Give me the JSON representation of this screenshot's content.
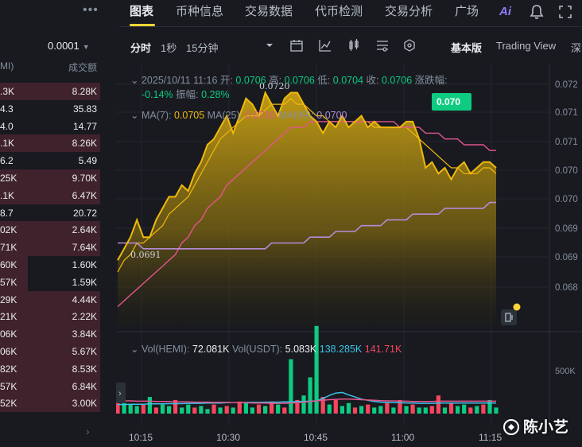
{
  "orderbook": {
    "menu_icon": "more-dots-icon",
    "precision": "0.0001",
    "header_left": "MI)",
    "header_right": "成交额",
    "rows": [
      {
        "qty": ".3K",
        "amount": "8.28K",
        "bar": 1.0
      },
      {
        "qty": "4.3",
        "amount": "35.83",
        "bar": 0.0
      },
      {
        "qty": "4.0",
        "amount": "14.77",
        "bar": 0.0
      },
      {
        "qty": ".1K",
        "amount": "8.26K",
        "bar": 1.0
      },
      {
        "qty": "6.2",
        "amount": "5.49",
        "bar": 0.0
      },
      {
        "qty": "25K",
        "amount": "9.70K",
        "bar": 1.0
      },
      {
        "qty": ".1K",
        "amount": "6.47K",
        "bar": 1.0
      },
      {
        "qty": "8.7",
        "amount": "20.72",
        "bar": 0.0
      },
      {
        "qty": "02K",
        "amount": "2.64K",
        "bar": 1.0
      },
      {
        "qty": "71K",
        "amount": "7.64K",
        "bar": 1.0
      },
      {
        "qty": "60K",
        "amount": "1.60K",
        "bar": 0.28
      },
      {
        "qty": "57K",
        "amount": "1.59K",
        "bar": 0.28
      },
      {
        "qty": "29K",
        "amount": "4.44K",
        "bar": 1.0
      },
      {
        "qty": "21K",
        "amount": "2.22K",
        "bar": 1.0
      },
      {
        "qty": "06K",
        "amount": "3.84K",
        "bar": 1.0
      },
      {
        "qty": "06K",
        "amount": "5.67K",
        "bar": 1.0
      },
      {
        "qty": "82K",
        "amount": "8.53K",
        "bar": 1.0
      },
      {
        "qty": "57K",
        "amount": "6.84K",
        "bar": 1.0
      },
      {
        "qty": "52K",
        "amount": "3.00K",
        "bar": 1.0
      }
    ],
    "more_icon": "chevron-right-icon"
  },
  "tabs": [
    {
      "label": "图表",
      "active": true
    },
    {
      "label": "币种信息",
      "active": false
    },
    {
      "label": "交易数据",
      "active": false
    },
    {
      "label": "代币检测",
      "active": false
    },
    {
      "label": "交易分析",
      "active": false
    },
    {
      "label": "广场",
      "active": false
    }
  ],
  "header_icons": [
    "ai-icon",
    "bell-icon",
    "expand-icon"
  ],
  "header_ai_label": "Ai",
  "toolbar": {
    "intervals": [
      {
        "label": "分时",
        "active": true
      },
      {
        "label": "1秒",
        "active": false
      },
      {
        "label": "15分钟",
        "active": false
      }
    ],
    "icons": [
      "dropdown-caret-icon",
      "calendar-icon",
      "indicator-icon",
      "candlestick-icon",
      "settings-sliders-icon",
      "hexagon-settings-icon"
    ],
    "views": [
      {
        "label": "基本版",
        "active": true
      },
      {
        "label": "Trading View",
        "active": false
      },
      {
        "label": "深",
        "active": false
      }
    ]
  },
  "ohlc": {
    "datetime": "2025/10/11 11:16",
    "open_label": "开:",
    "open": "0.0706",
    "high_label": "高:",
    "high": "0.0706",
    "low_label": "低:",
    "low": "0.0704",
    "close_label": "收:",
    "close": "0.0706",
    "change_label": "涨跌幅:",
    "change": "-0.14%",
    "amplitude_label": "振幅:",
    "amplitude": "0.28%"
  },
  "ma": {
    "ma7_label": "MA(7):",
    "ma7": "0.0705",
    "ma25_label": "MA(25):",
    "ma25": "0.0710",
    "ma99_label": "MA(99):",
    "ma99": "0.0700"
  },
  "vol": {
    "vol_hemi_label": "Vol(HEMI):",
    "vol_hemi": "72.081K",
    "vol_usdt_label": "Vol(USDT):",
    "vol_usdt": "5.083K",
    "ma_a": "138.285K",
    "ma_b": "141.71K"
  },
  "price_tag": "0.070",
  "high_marker": "0.0720",
  "low_marker": "0.0691",
  "colors": {
    "up": "#0ecb81",
    "down": "#f6465d",
    "accent": "#fcd535",
    "price_line": "#f0b90b",
    "ma7": "#f0b90b",
    "ma25": "#e2558e",
    "ma99": "#b48bd8",
    "vol_ma": "#3cc2e6"
  },
  "chart_data": {
    "type": "area",
    "price_axis_ticks": [
      "0.072",
      "0.071",
      "0.071",
      "0.070",
      "0.070",
      "0.069",
      "0.069",
      "0.068"
    ],
    "volume_axis_ticks": [
      "500K"
    ],
    "time_ticks": [
      "10:15",
      "10:30",
      "10:45",
      "11:00",
      "11:15"
    ],
    "price": [
      0.0691,
      0.0693,
      0.0695,
      0.0698,
      0.0695,
      0.0695,
      0.0698,
      0.07,
      0.0702,
      0.0702,
      0.0704,
      0.0703,
      0.0706,
      0.0708,
      0.0711,
      0.0712,
      0.0714,
      0.0716,
      0.0713,
      0.0716,
      0.0719,
      0.0718,
      0.0716,
      0.072,
      0.0718,
      0.0716,
      0.0719,
      0.072,
      0.072,
      0.0718,
      0.0716,
      0.0715,
      0.0713,
      0.0715,
      0.0714,
      0.0716,
      0.0714,
      0.0715,
      0.0716,
      0.0714,
      0.0715,
      0.0714,
      0.0714,
      0.0714,
      0.0714,
      0.0715,
      0.0715,
      0.0712,
      0.0707,
      0.0708,
      0.0706,
      0.0707,
      0.0705,
      0.0707,
      0.0708,
      0.0706,
      0.0707,
      0.0708,
      0.0708,
      0.0707
    ],
    "ma7": [
      0.0689,
      0.0691,
      0.0692,
      0.0694,
      0.0694,
      0.0695,
      0.0696,
      0.0697,
      0.0699,
      0.07,
      0.0701,
      0.0702,
      0.0704,
      0.0706,
      0.0708,
      0.071,
      0.0712,
      0.0713,
      0.0714,
      0.0715,
      0.0716,
      0.0716,
      0.0716,
      0.0717,
      0.0718,
      0.0718,
      0.0718,
      0.0719,
      0.0718,
      0.0718,
      0.0717,
      0.0716,
      0.0716,
      0.0715,
      0.0715,
      0.0715,
      0.0715,
      0.0715,
      0.0715,
      0.0715,
      0.0714,
      0.0714,
      0.0714,
      0.0714,
      0.0714,
      0.0714,
      0.0713,
      0.0712,
      0.0711,
      0.071,
      0.0709,
      0.0708,
      0.0707,
      0.0707,
      0.0706,
      0.0706,
      0.0706,
      0.0707,
      0.0707,
      0.0706
    ],
    "ma25": [
      0.0683,
      0.0684,
      0.0685,
      0.0686,
      0.0687,
      0.0688,
      0.0689,
      0.069,
      0.0691,
      0.0692,
      0.0694,
      0.0695,
      0.0697,
      0.0698,
      0.07,
      0.0701,
      0.0702,
      0.0704,
      0.0705,
      0.0706,
      0.0707,
      0.0708,
      0.0709,
      0.071,
      0.0711,
      0.0712,
      0.0713,
      0.0714,
      0.0714,
      0.0714,
      0.0715,
      0.0715,
      0.0715,
      0.0715,
      0.0715,
      0.0715,
      0.0715,
      0.0715,
      0.0715,
      0.0715,
      0.0715,
      0.0715,
      0.0715,
      0.0715,
      0.0714,
      0.0714,
      0.0714,
      0.0714,
      0.0713,
      0.0713,
      0.0713,
      0.0712,
      0.0712,
      0.0712,
      0.0711,
      0.0711,
      0.0711,
      0.0711,
      0.071,
      0.071
    ],
    "ma99": [
      0.0694,
      0.0694,
      0.0694,
      0.0694,
      0.0693,
      0.0693,
      0.0693,
      0.0693,
      0.0693,
      0.0693,
      0.0693,
      0.0693,
      0.0693,
      0.0693,
      0.0693,
      0.0693,
      0.0693,
      0.0693,
      0.0693,
      0.0693,
      0.0693,
      0.0693,
      0.0693,
      0.0693,
      0.0694,
      0.0694,
      0.0694,
      0.0694,
      0.0694,
      0.0694,
      0.0695,
      0.0695,
      0.0695,
      0.0695,
      0.0696,
      0.0696,
      0.0696,
      0.0696,
      0.0697,
      0.0697,
      0.0697,
      0.0697,
      0.0698,
      0.0698,
      0.0698,
      0.0698,
      0.0699,
      0.0699,
      0.0699,
      0.0699,
      0.0699,
      0.07,
      0.07,
      0.07,
      0.07,
      0.07,
      0.07,
      0.07,
      0.0701,
      0.0701
    ],
    "volume": [
      40,
      35,
      30,
      25,
      30,
      55,
      20,
      30,
      25,
      45,
      20,
      30,
      20,
      25,
      15,
      30,
      20,
      25,
      20,
      40,
      35,
      20,
      30,
      25,
      40,
      30,
      20,
      180,
      45,
      60,
      120,
      290,
      55,
      30,
      45,
      25,
      35,
      20,
      25,
      30,
      20,
      25,
      35,
      20,
      45,
      25,
      30,
      20,
      20,
      25,
      60,
      20,
      35,
      25,
      30,
      20,
      25,
      30,
      45,
      20
    ],
    "volume_up": [
      false,
      true,
      true,
      true,
      false,
      true,
      false,
      true,
      true,
      false,
      true,
      true,
      false,
      true,
      true,
      false,
      true,
      false,
      true,
      false,
      true,
      true,
      false,
      true,
      false,
      true,
      false,
      true,
      false,
      true,
      true,
      true,
      false,
      true,
      false,
      true,
      true,
      false,
      true,
      false,
      true,
      true,
      false,
      true,
      false,
      true,
      false,
      true,
      true,
      false,
      false,
      true,
      false,
      true,
      true,
      false,
      true,
      false,
      true,
      true
    ],
    "vol_ma": [
      30,
      30,
      31,
      31,
      31,
      32,
      32,
      32,
      33,
      33,
      33,
      34,
      34,
      34,
      35,
      35,
      35,
      36,
      36,
      36,
      37,
      37,
      37,
      38,
      38,
      38,
      39,
      39,
      40,
      40,
      41,
      42,
      50,
      60,
      68,
      70,
      62,
      55,
      48,
      44,
      40,
      38,
      37,
      36,
      36,
      35,
      35,
      34,
      34,
      34,
      35,
      35,
      35,
      35,
      35,
      35,
      35,
      35,
      35,
      35
    ],
    "vol_ma_b": [
      42,
      42,
      42,
      41,
      41,
      41,
      40,
      40,
      40,
      39,
      39,
      39,
      38,
      38,
      38,
      37,
      37,
      37,
      36,
      36,
      36,
      35,
      35,
      35,
      34,
      34,
      34,
      35,
      36,
      38,
      40,
      42,
      44,
      46,
      47,
      48,
      48,
      47,
      46,
      45,
      44,
      43,
      42,
      42,
      41,
      41,
      40,
      40,
      40,
      40,
      41,
      41,
      41,
      41,
      41,
      41,
      41,
      41,
      41,
      41
    ],
    "price_range": [
      0.0681,
      0.0722
    ],
    "legend": "top-left",
    "grid": true
  }
}
